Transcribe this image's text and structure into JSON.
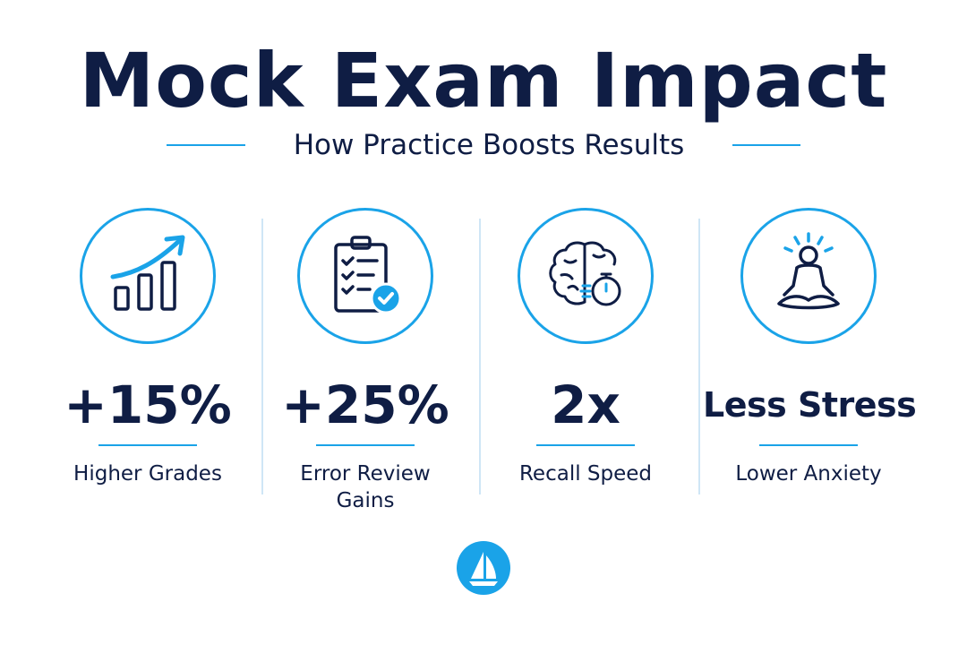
{
  "title": "Mock Exam Impact",
  "subtitle": "How Practice Boosts Results",
  "colors": {
    "navy": "#0f1d44",
    "accent": "#1aa3e8",
    "divider": "#cfe6f6",
    "background": "#ffffff"
  },
  "stats": [
    {
      "icon": "growth-chart-icon",
      "value": "+15%",
      "label": "Higher Grades"
    },
    {
      "icon": "checklist-clipboard-icon",
      "value": "+25%",
      "label": "Error Review Gains"
    },
    {
      "icon": "brain-stopwatch-icon",
      "value": "2x",
      "label": "Recall Speed"
    },
    {
      "icon": "meditation-icon",
      "value": "Less Stress",
      "label": "Lower Anxiety"
    }
  ],
  "logo": {
    "icon": "sailboat-logo-icon"
  }
}
